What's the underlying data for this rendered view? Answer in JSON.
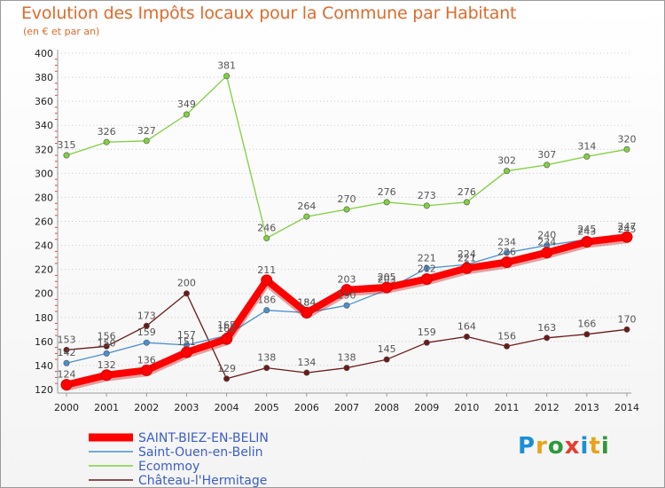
{
  "header": {
    "title": "Evolution des Impôts locaux pour la Commune par Habitant",
    "subtitle": "(en € et par an)"
  },
  "logo": {
    "text": "Proxiti",
    "colors": [
      "#1a8fd6",
      "#e8a317",
      "#2e9a3a",
      "#e83d2e",
      "#1a8fd6",
      "#e8a317",
      "#2e9a3a"
    ]
  },
  "chart_data": {
    "type": "line",
    "title": "Evolution des Impôts locaux pour la Commune par Habitant",
    "subtitle": "(en € et par an)",
    "x": [
      "2000",
      "2001",
      "2002",
      "2003",
      "2004",
      "2005",
      "2006",
      "2007",
      "2008",
      "2009",
      "2010",
      "2011",
      "2012",
      "2013",
      "2014"
    ],
    "ylim": [
      120,
      400
    ],
    "yticks": [
      120,
      140,
      160,
      180,
      200,
      220,
      240,
      260,
      280,
      300,
      320,
      340,
      360,
      380,
      400
    ],
    "grid": "horizontal-dotted",
    "legend_position": "bottom-left",
    "series": [
      {
        "name": "SAINT-BIEZ-EN-BELIN",
        "color": "#ff0000",
        "values": [
          124,
          132,
          136,
          151,
          162,
          211,
          184,
          203,
          205,
          212,
          221,
          226,
          234,
          243,
          247
        ]
      },
      {
        "name": "Saint-Ouen-en-Belin",
        "color": "#4a8fd1",
        "values": [
          142,
          150,
          159,
          157,
          165,
          186,
          184,
          190,
          203,
          221,
          224,
          234,
          240,
          245,
          245
        ]
      },
      {
        "name": "Ecommoy",
        "color": "#80d040",
        "values": [
          315,
          326,
          327,
          349,
          381,
          246,
          264,
          270,
          276,
          273,
          276,
          302,
          307,
          314,
          320
        ]
      },
      {
        "name": "Château-l'Hermitage",
        "color": "#6b1a1a",
        "values": [
          153,
          156,
          173,
          200,
          129,
          138,
          134,
          138,
          145,
          159,
          164,
          156,
          163,
          166,
          170
        ]
      }
    ]
  }
}
